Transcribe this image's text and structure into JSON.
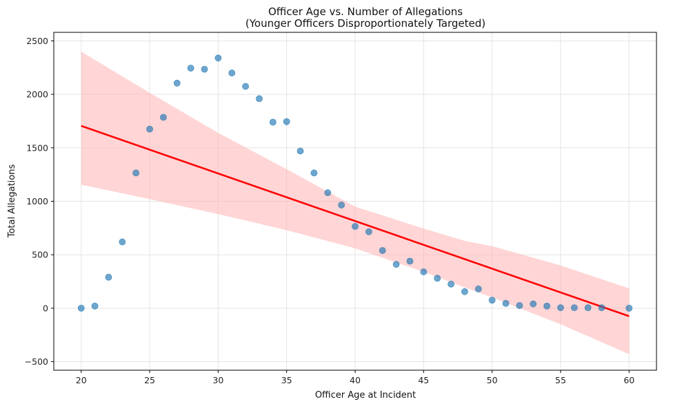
{
  "chart_data": {
    "type": "scatter",
    "title": "Officer Age vs. Number of Allegations",
    "subtitle": "(Younger Officers Disproportionately Targeted)",
    "xlabel": "Officer Age at Incident",
    "ylabel": "Total Allegations",
    "xlim": [
      18,
      62
    ],
    "ylim": [
      -580,
      2580
    ],
    "xticks": [
      20,
      25,
      30,
      35,
      40,
      45,
      50,
      55,
      60
    ],
    "yticks": [
      -500,
      0,
      500,
      1000,
      1500,
      2000,
      2500
    ],
    "xtick_labels": [
      "20",
      "25",
      "30",
      "35",
      "40",
      "45",
      "50",
      "55",
      "60"
    ],
    "ytick_labels": [
      "−500",
      "0",
      "500",
      "1000",
      "1500",
      "2000",
      "2500"
    ],
    "grid": true,
    "points": {
      "color": "#1f77b4",
      "x": [
        20,
        21,
        22,
        23,
        24,
        25,
        26,
        27,
        28,
        29,
        30,
        31,
        32,
        33,
        34,
        35,
        36,
        37,
        38,
        39,
        40,
        41,
        42,
        43,
        44,
        45,
        46,
        47,
        48,
        49,
        50,
        51,
        52,
        53,
        54,
        55,
        56,
        57,
        58,
        60
      ],
      "y": [
        0,
        20,
        290,
        620,
        1265,
        1675,
        1785,
        2105,
        2245,
        2235,
        2340,
        2200,
        2075,
        1960,
        1740,
        1745,
        1470,
        1265,
        1080,
        965,
        765,
        715,
        540,
        410,
        440,
        340,
        280,
        225,
        155,
        180,
        75,
        45,
        25,
        40,
        20,
        5,
        5,
        5,
        5,
        0
      ]
    },
    "regression": {
      "color": "#ff0000",
      "line": {
        "x": [
          20,
          60
        ],
        "y": [
          1705,
          -75
        ]
      },
      "ci_band": {
        "color": "#ffb3b3",
        "x": [
          20,
          25,
          30,
          35,
          40,
          45,
          48,
          50,
          55,
          60
        ],
        "lower": [
          1155,
          1020,
          880,
          730,
          560,
          340,
          195,
          100,
          -150,
          -430
        ],
        "upper": [
          2400,
          2015,
          1640,
          1300,
          950,
          745,
          630,
          580,
          400,
          185
        ]
      }
    }
  }
}
